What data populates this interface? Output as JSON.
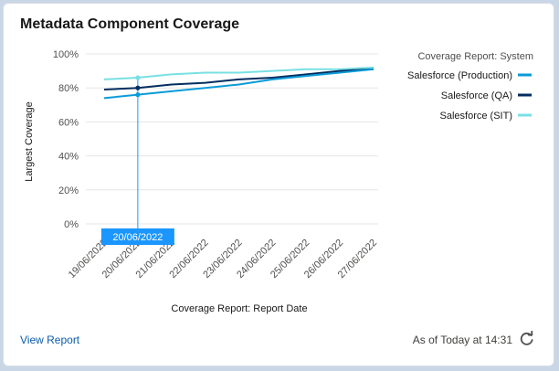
{
  "card": {
    "title": "Metadata Component Coverage",
    "view_report_label": "View Report",
    "as_of_label": "As of Today at 14:31",
    "refresh_icon": "refresh-icon"
  },
  "tooltip": {
    "label": "20/06/2022",
    "color": "#1b96ff"
  },
  "chart_data": {
    "type": "line",
    "xlabel": "Coverage Report: Report Date",
    "ylabel": "Largest Coverage",
    "legend_title": "Coverage Report: System",
    "legend_position": "right",
    "grid": true,
    "ylim": [
      0,
      100
    ],
    "y_ticks": [
      "0%",
      "20%",
      "40%",
      "60%",
      "80%",
      "100%"
    ],
    "categories": [
      "19/06/2022",
      "20/06/2022",
      "21/06/2022",
      "22/06/2022",
      "23/06/2022",
      "24/06/2022",
      "25/06/2022",
      "26/06/2022",
      "27/06/2022"
    ],
    "series": [
      {
        "name": "Salesforce (Production)",
        "color": "#0b9bd8",
        "values": [
          74,
          76,
          78,
          80,
          82,
          85,
          87,
          89,
          91
        ]
      },
      {
        "name": "Salesforce (QA)",
        "color": "#032d60",
        "values": [
          79,
          80,
          82,
          83,
          85,
          86,
          88,
          90,
          91
        ]
      },
      {
        "name": "Salesforce (SIT)",
        "color": "#78e0e3",
        "values": [
          85,
          86,
          88,
          89,
          89,
          90,
          91,
          91,
          92
        ]
      }
    ]
  }
}
